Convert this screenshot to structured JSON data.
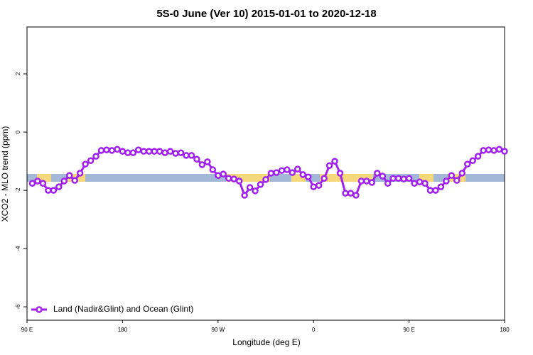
{
  "chart_data": {
    "type": "line",
    "title": "5S-0 June (Ver 10)   2015-01-01 to 2020-12-18",
    "x_label": "Longitude (deg E)",
    "y_label": "XCO2 - MLO trend (ppm)",
    "x": [
      95,
      100,
      105,
      110,
      115,
      120,
      125,
      130,
      135,
      140,
      145,
      150,
      155,
      160,
      165,
      170,
      175,
      180,
      185,
      190,
      195,
      200,
      205,
      210,
      215,
      220,
      225,
      230,
      235,
      240,
      245,
      250,
      255,
      260,
      265,
      270,
      275,
      280,
      285,
      290,
      295,
      300,
      305,
      310,
      315,
      320,
      325,
      330,
      335,
      340,
      345,
      350,
      355,
      360,
      365,
      370,
      375,
      380,
      385,
      390,
      395,
      400,
      405,
      410,
      415,
      420,
      425,
      430,
      435,
      440,
      445,
      450,
      455,
      460,
      465,
      470,
      475,
      480,
      485,
      490,
      495,
      500,
      505,
      510,
      515,
      520,
      525,
      530,
      535,
      540
    ],
    "series": [
      {
        "name": "Land (Nadir&Glint) and Ocean (Glint)",
        "color": "#a020f0",
        "values": [
          -1.76,
          -1.68,
          -1.76,
          -2.0,
          -2.0,
          -1.88,
          -1.68,
          -1.49,
          -1.66,
          -1.41,
          -1.1,
          -0.98,
          -0.83,
          -0.63,
          -0.61,
          -0.63,
          -0.59,
          -0.66,
          -0.71,
          -0.71,
          -0.61,
          -0.66,
          -0.66,
          -0.66,
          -0.66,
          -0.71,
          -0.66,
          -0.73,
          -0.71,
          -0.8,
          -0.8,
          -0.93,
          -1.12,
          -1.02,
          -1.29,
          -1.49,
          -1.44,
          -1.59,
          -1.61,
          -1.68,
          -2.17,
          -1.9,
          -2.02,
          -1.8,
          -1.63,
          -1.41,
          -1.39,
          -1.32,
          -1.29,
          -1.39,
          -1.27,
          -1.46,
          -1.54,
          -1.88,
          -1.83,
          -1.59,
          -1.15,
          -1.0,
          -1.41,
          -2.1,
          -2.1,
          -2.17,
          -1.68,
          -1.68,
          -1.73,
          -1.41,
          -1.51,
          -1.76,
          -1.59,
          -1.59,
          -1.61,
          -1.59,
          -1.76,
          -1.71,
          -1.76,
          -2.0,
          -2.0,
          -1.88,
          -1.68,
          -1.49,
          -1.66,
          -1.41,
          -1.1,
          -0.98,
          -0.83,
          -0.63,
          -0.61,
          -0.63,
          -0.59,
          -0.66
        ]
      }
    ],
    "xlim": [
      90,
      540
    ],
    "xticks": [
      {
        "value": 90,
        "label": "90 E"
      },
      180,
      {
        "value": 270,
        "label": "90 W"
      },
      {
        "value": 360,
        "label": "0"
      },
      {
        "value": 450,
        "label": "90 E"
      },
      {
        "value": 540,
        "label": "180"
      }
    ],
    "ylim": [
      -6.46,
      3.61
    ],
    "yticks": [
      2,
      0,
      -2,
      -4,
      -6
    ],
    "legend": "bottom-left"
  }
}
